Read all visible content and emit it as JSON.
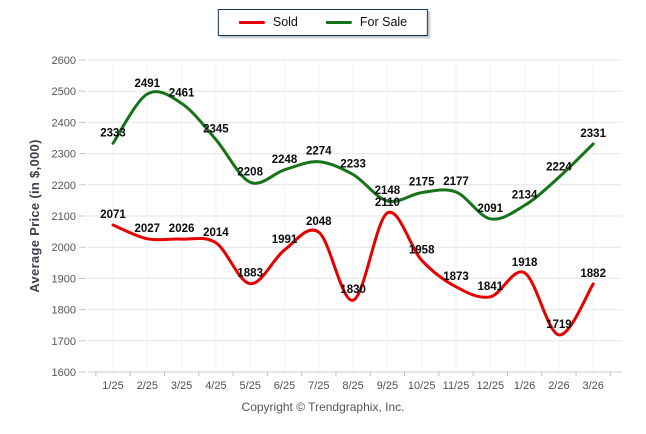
{
  "chart_data": {
    "type": "line",
    "categories": [
      "1/25",
      "2/25",
      "3/25",
      "4/25",
      "5/25",
      "6/25",
      "7/25",
      "8/25",
      "9/25",
      "10/25",
      "11/25",
      "12/25",
      "1/26",
      "2/26",
      "3/26"
    ],
    "series": [
      {
        "name": "Sold",
        "color": "#e60000",
        "values": [
          2071,
          2027,
          2026,
          2014,
          1883,
          1991,
          2048,
          1830,
          2110,
          1958,
          1873,
          1841,
          1918,
          1719,
          1882
        ]
      },
      {
        "name": "For Sale",
        "color": "#177317",
        "values": [
          2333,
          2491,
          2461,
          2345,
          2208,
          2248,
          2274,
          2233,
          2148,
          2175,
          2177,
          2091,
          2134,
          2224,
          2331
        ]
      }
    ],
    "title": "",
    "xlabel": "",
    "ylabel": "Average Price (in $,000)",
    "ylim": [
      1600,
      2600
    ],
    "ytick_step": 100,
    "grid": true,
    "legend_position": "top",
    "smooth": true
  },
  "footer": {
    "copyright": "Copyright © Trendgraphix, Inc."
  },
  "colors": {
    "sold_line": "#e60000",
    "for_sale_line": "#177317",
    "gridline": "#e6e6ea",
    "axis_line": "#c9c9cd",
    "tick_text": "#55565a",
    "data_label": "#0b0b0d",
    "legend_border": "#17375e"
  }
}
